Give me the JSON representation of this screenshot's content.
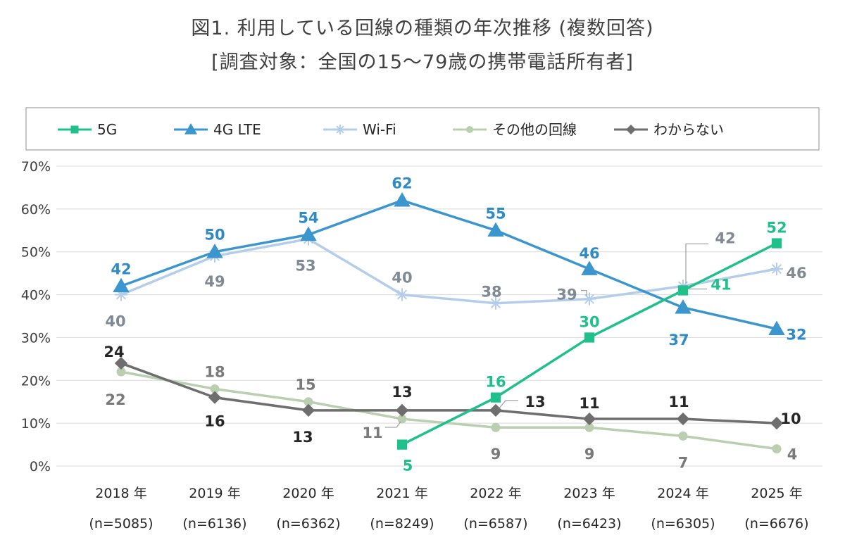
{
  "chart_data": {
    "type": "line",
    "title": "図1. 利用している回線の種類の年次推移 (複数回答)",
    "subtitle": "[調査対象：全国の15～79歳の携帯電話所有者]",
    "xlabel": "",
    "ylabel": "",
    "ylim": [
      0,
      70
    ],
    "y_ticks": [
      0,
      10,
      20,
      30,
      40,
      50,
      60,
      70
    ],
    "y_tick_labels": [
      "0%",
      "10%",
      "20%",
      "30%",
      "40%",
      "50%",
      "60%",
      "70%"
    ],
    "grid": true,
    "legend_position": "top",
    "categories": [
      "2018 年",
      "2019 年",
      "2020 年",
      "2021 年",
      "2022 年",
      "2023 年",
      "2024 年",
      "2025 年"
    ],
    "sample_sizes": [
      "(n=5085)",
      "(n=6136)",
      "(n=6362)",
      "(n=8249)",
      "(n=6587)",
      "(n=6423)",
      "(n=6305)",
      "(n=6676)"
    ],
    "series": [
      {
        "name": "5G",
        "color": "#1fc08a",
        "label_color": "#1fc08a",
        "marker": "square",
        "bold": true,
        "values": [
          null,
          null,
          null,
          5,
          16,
          30,
          41,
          52
        ],
        "labels": [
          null,
          null,
          null,
          "5",
          "16",
          "30",
          "41",
          "52"
        ]
      },
      {
        "name": "4G LTE",
        "color": "#3a96cd",
        "label_color": "#2e8bc6",
        "marker": "triangle",
        "bold": true,
        "values": [
          42,
          50,
          54,
          62,
          55,
          46,
          37,
          32
        ],
        "labels": [
          "42",
          "50",
          "54",
          "62",
          "55",
          "46",
          "37",
          "32"
        ]
      },
      {
        "name": "Wi-Fi",
        "color": "#b4cdea",
        "label_color": "#7f8a94",
        "marker": "star",
        "bold": false,
        "values": [
          40,
          49,
          53,
          40,
          38,
          39,
          42,
          46
        ],
        "labels": [
          "40",
          "49",
          "53",
          "40",
          "38",
          "39",
          "42",
          "46"
        ]
      },
      {
        "name": "その他の回線",
        "color": "#b9cfb0",
        "label_color": "#7a7a7a",
        "marker": "circle",
        "bold": false,
        "values": [
          22,
          18,
          15,
          11,
          9,
          9,
          7,
          4
        ],
        "labels": [
          "22",
          "18",
          "15",
          "11",
          "9",
          "9",
          "7",
          "4"
        ]
      },
      {
        "name": "わからない",
        "color": "#6e6e6e",
        "label_color": "#262626",
        "marker": "diamond",
        "bold": true,
        "values": [
          24,
          16,
          13,
          13,
          13,
          11,
          11,
          10
        ],
        "labels": [
          "24",
          "16",
          "13",
          "13",
          "13",
          "11",
          "11",
          "10"
        ]
      }
    ]
  }
}
